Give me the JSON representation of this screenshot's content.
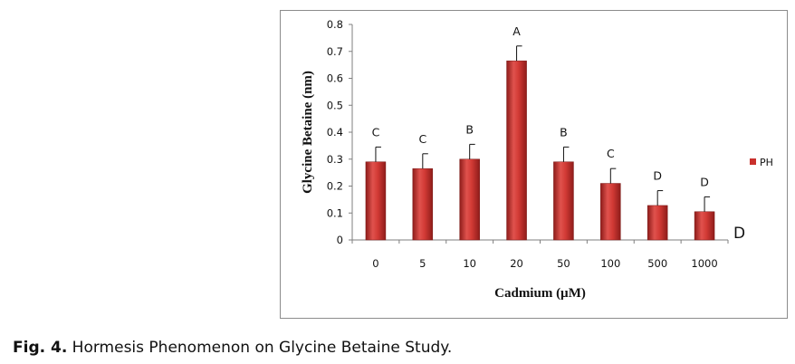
{
  "caption": {
    "label": "Fig. 4.",
    "text": " Hormesis Phenomenon on Glycine Betaine Study."
  },
  "chart_data": {
    "type": "bar",
    "xlabel": "Cadmium (µM)",
    "ylabel": "Glycine Betaine  (nm)",
    "ylim": [
      0,
      0.8
    ],
    "yticks": [
      "0",
      "0.1",
      "0.2",
      "0.3",
      "0.4",
      "0.5",
      "0.6",
      "0.7",
      "0.8"
    ],
    "categories": [
      "0",
      "5",
      "10",
      "20",
      "50",
      "100",
      "500",
      "1000"
    ],
    "series": [
      {
        "name": "PH",
        "values": [
          0.29,
          0.265,
          0.3,
          0.665,
          0.29,
          0.21,
          0.128,
          0.105
        ],
        "errors": [
          0.055,
          0.055,
          0.055,
          0.055,
          0.055,
          0.055,
          0.055,
          0.055
        ],
        "group_labels": [
          "C",
          "C",
          "B",
          "A",
          "B",
          "C",
          "D",
          "D"
        ]
      }
    ],
    "extra_annotation": "D",
    "legend_position": "right",
    "grid": false,
    "bar_color": "#c9302c"
  }
}
